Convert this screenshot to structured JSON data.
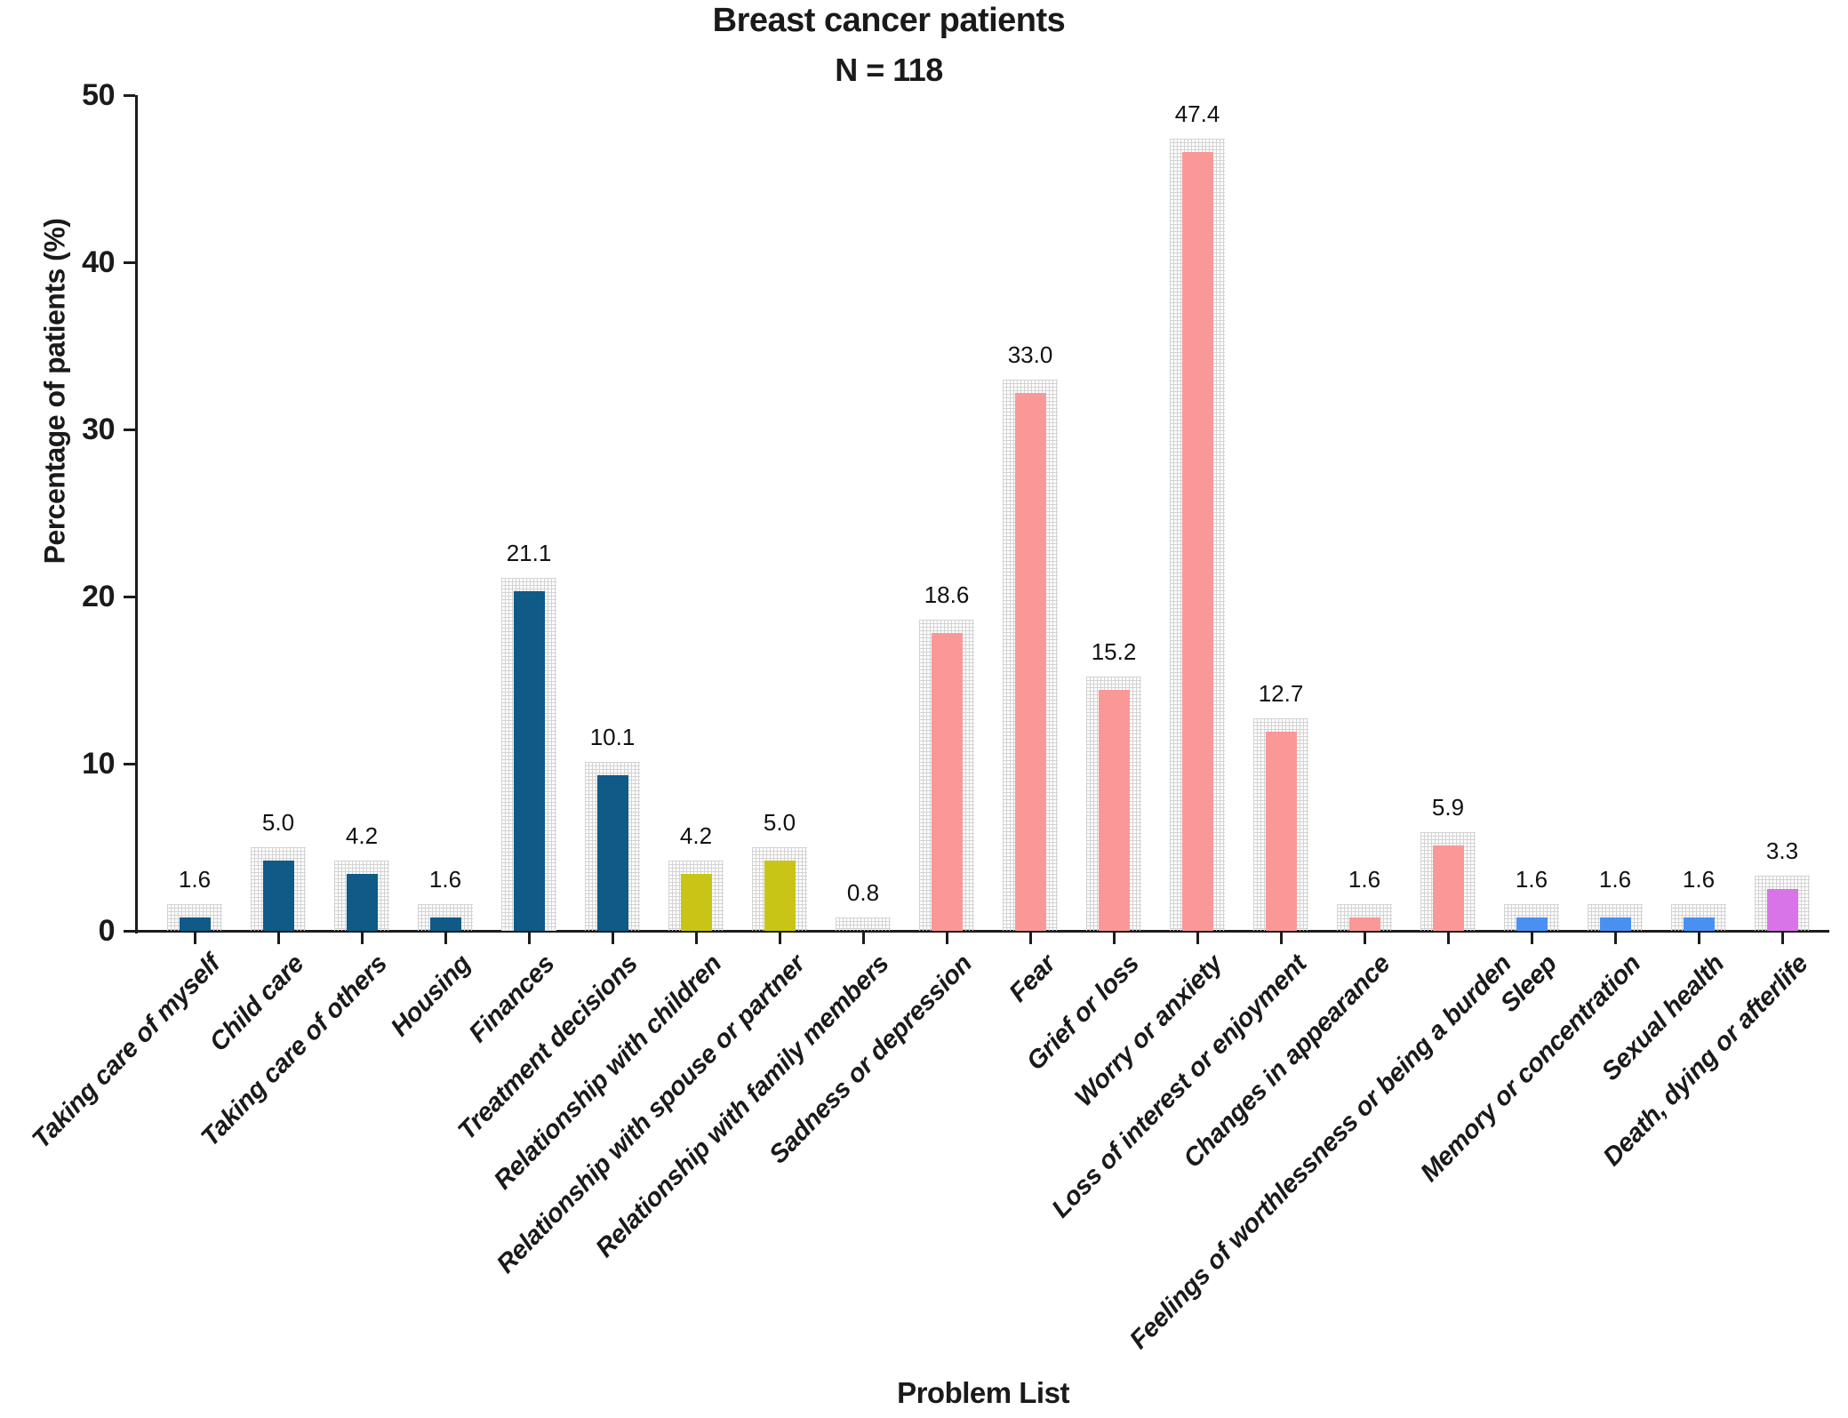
{
  "title": "Breast cancer patients",
  "subtitle": "N = 118",
  "chart_data": {
    "type": "bar",
    "title": "Breast cancer patients",
    "subtitle": "N = 118",
    "xlabel": "Problem List",
    "ylabel": "Percentage of patients (%)",
    "ylim": [
      0,
      50
    ],
    "yticks": [
      0,
      10,
      20,
      30,
      40,
      50
    ],
    "grid": false,
    "legend": "none",
    "categories": [
      "Taking care of myself",
      "Child care",
      "Taking care of others",
      "Housing",
      "Finances",
      "Treatment decisions",
      "Relationship with children",
      "Relationship with spouse or partner",
      "Relationship with family members",
      "Sadness or depression",
      "Fear",
      "Grief or loss",
      "Worry or anxiety",
      "Loss of interest or enjoyment",
      "Changes in appearance",
      "Feelings of worthlessness or being a burden",
      "Sleep",
      "Memory or concentration",
      "Sexual health",
      "Death, dying or afterlife"
    ],
    "values": [
      1.6,
      5.0,
      4.2,
      1.6,
      21.1,
      10.1,
      4.2,
      5.0,
      0.8,
      18.6,
      33.0,
      15.2,
      47.4,
      12.7,
      1.6,
      5.9,
      1.6,
      1.6,
      1.6,
      3.3
    ],
    "value_labels": [
      "1.6",
      "5.0",
      "4.2",
      "1.6",
      "21.1",
      "10.1",
      "4.2",
      "5.0",
      "0.8",
      "18.6",
      "33.0",
      "15.2",
      "47.4",
      "12.7",
      "1.6",
      "5.9",
      "1.6",
      "1.6",
      "1.6",
      "3.3"
    ],
    "bar_colors": [
      "#0f5a87",
      "#0f5a87",
      "#0f5a87",
      "#0f5a87",
      "#0f5a87",
      "#0f5a87",
      "#c9c516",
      "#c9c516",
      "#c9c516",
      "#fa9898",
      "#fa9898",
      "#fa9898",
      "#fa9898",
      "#fa9898",
      "#fa9898",
      "#fa9898",
      "#4a90f0",
      "#4a90f0",
      "#4a90f0",
      "#d873e8"
    ],
    "group_colors": {
      "practical_problems": "#0f5a87",
      "family_problems": "#c9c516",
      "emotional_problems": "#fa9898",
      "physical_problems": "#4a90f0",
      "spiritual_problems": "#d873e8"
    },
    "pattern_color": "#d2d2d2",
    "axis_color": "#1c1c1c"
  }
}
